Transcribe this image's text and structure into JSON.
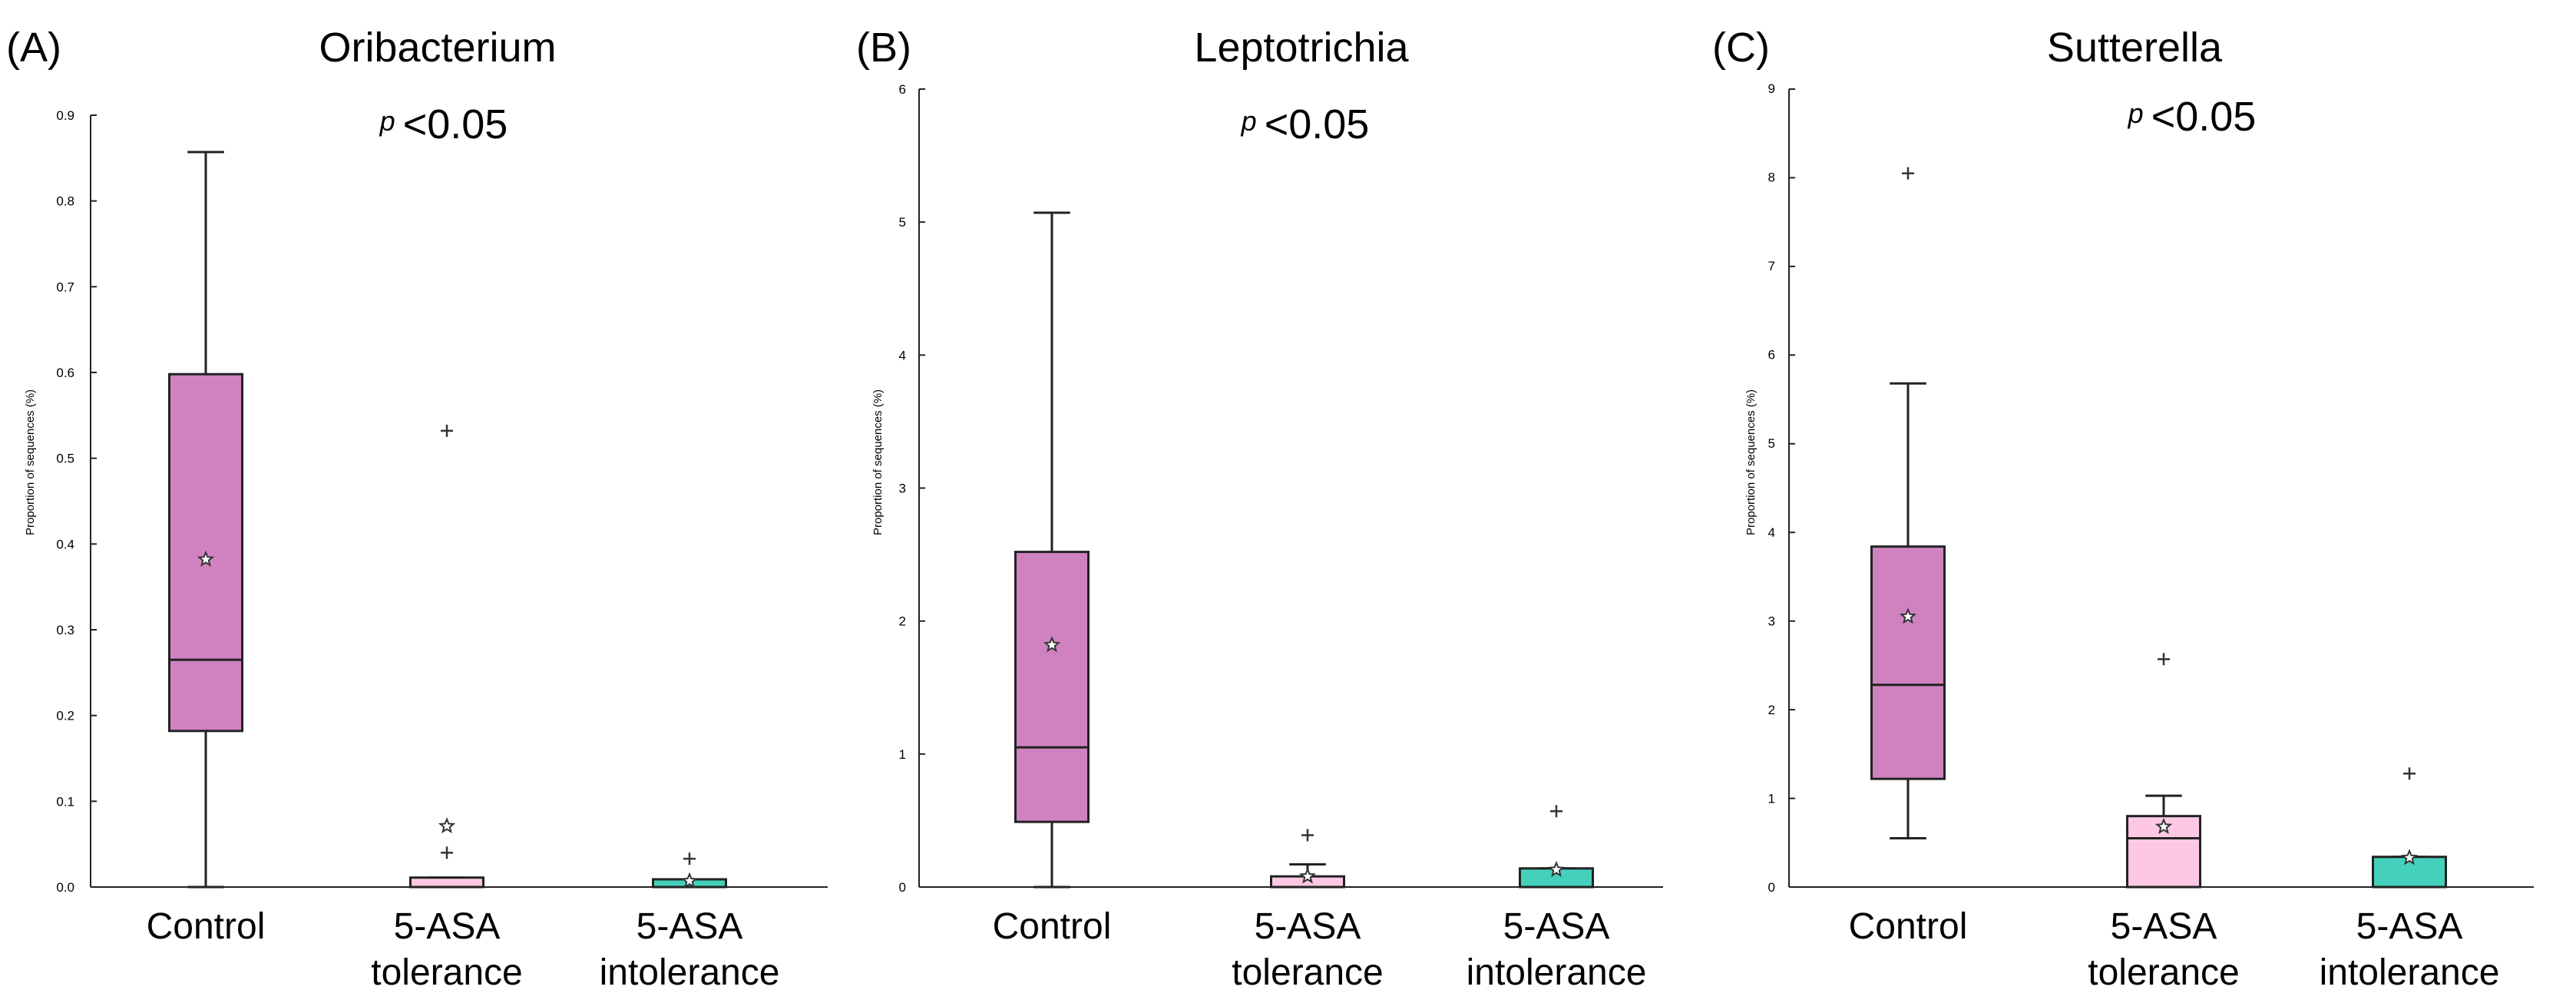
{
  "colors": {
    "Control": "#d082c0",
    "5-ASA tolerance": "#fcc8e3",
    "5-ASA intolerance": "#45d0bb"
  },
  "chart_data": [
    {
      "panel_label": "(A)",
      "type": "box",
      "title": "Oribacterium",
      "pvalue_p": "p",
      "pvalue_rest": "<0.05",
      "ylabel": "Proportion of sequences (%)",
      "ylim": [
        0,
        0.9
      ],
      "yticks": [
        "0.0",
        "0.1",
        "0.2",
        "0.3",
        "0.4",
        "0.5",
        "0.6",
        "0.7",
        "0.8",
        "0.9"
      ],
      "groups": [
        {
          "line1": "Control",
          "line2": "",
          "color_key": "Control",
          "min": 0.0,
          "q1": 0.182,
          "median": 0.265,
          "q3": 0.598,
          "max": 0.857,
          "mean": 0.382,
          "outliers": []
        },
        {
          "line1": "5-ASA",
          "line2": "tolerance",
          "color_key": "5-ASA tolerance",
          "min": 0.0,
          "q1": 0.0,
          "median": 0.0,
          "q3": 0.011,
          "max": 0.011,
          "mean": 0.071,
          "outliers": [
            0.532,
            0.04
          ]
        },
        {
          "line1": "5-ASA",
          "line2": "intolerance",
          "color_key": "5-ASA intolerance",
          "min": 0.0,
          "q1": 0.0,
          "median": 0.0,
          "q3": 0.009,
          "max": 0.009,
          "mean": 0.007,
          "outliers": [
            0.033
          ]
        }
      ]
    },
    {
      "panel_label": "(B)",
      "type": "box",
      "title": "Leptotrichia",
      "pvalue_p": "p",
      "pvalue_rest": "<0.05",
      "ylabel": "Proportion of sequences (%)",
      "ylim": [
        0,
        6
      ],
      "yticks": [
        "0",
        "1",
        "2",
        "3",
        "4",
        "5",
        "6"
      ],
      "groups": [
        {
          "line1": "Control",
          "line2": "",
          "color_key": "Control",
          "min": 0.0,
          "q1": 0.49,
          "median": 1.05,
          "q3": 2.52,
          "max": 5.07,
          "mean": 1.82,
          "outliers": []
        },
        {
          "line1": "5-ASA",
          "line2": "tolerance",
          "color_key": "5-ASA tolerance",
          "min": 0.0,
          "q1": 0.0,
          "median": 0.0,
          "q3": 0.08,
          "max": 0.17,
          "mean": 0.08,
          "outliers": [
            0.39
          ]
        },
        {
          "line1": "5-ASA",
          "line2": "intolerance",
          "color_key": "5-ASA intolerance",
          "min": 0.0,
          "q1": 0.0,
          "median": 0.0,
          "q3": 0.14,
          "max": 0.14,
          "mean": 0.13,
          "outliers": [
            0.57
          ]
        }
      ]
    },
    {
      "panel_label": "(C)",
      "type": "box",
      "title": "Sutterella",
      "pvalue_p": "p",
      "pvalue_rest": "<0.05",
      "ylabel": "Proportion of sequences (%)",
      "ylim": [
        0,
        9
      ],
      "yticks": [
        "0",
        "1",
        "2",
        "3",
        "4",
        "5",
        "6",
        "7",
        "8",
        "9"
      ],
      "groups": [
        {
          "line1": "Control",
          "line2": "",
          "color_key": "Control",
          "min": 0.55,
          "q1": 1.22,
          "median": 2.28,
          "q3": 3.84,
          "max": 5.68,
          "mean": 3.05,
          "outliers": [
            8.05
          ]
        },
        {
          "line1": "5-ASA",
          "line2": "tolerance",
          "color_key": "5-ASA tolerance",
          "min": 0.0,
          "q1": 0.0,
          "median": 0.55,
          "q3": 0.8,
          "max": 1.03,
          "mean": 0.68,
          "outliers": [
            2.57
          ]
        },
        {
          "line1": "5-ASA",
          "line2": "intolerance",
          "color_key": "5-ASA intolerance",
          "min": 0.0,
          "q1": 0.0,
          "median": 0.0,
          "q3": 0.34,
          "max": 0.34,
          "mean": 0.33,
          "outliers": [
            1.28
          ]
        }
      ]
    }
  ]
}
